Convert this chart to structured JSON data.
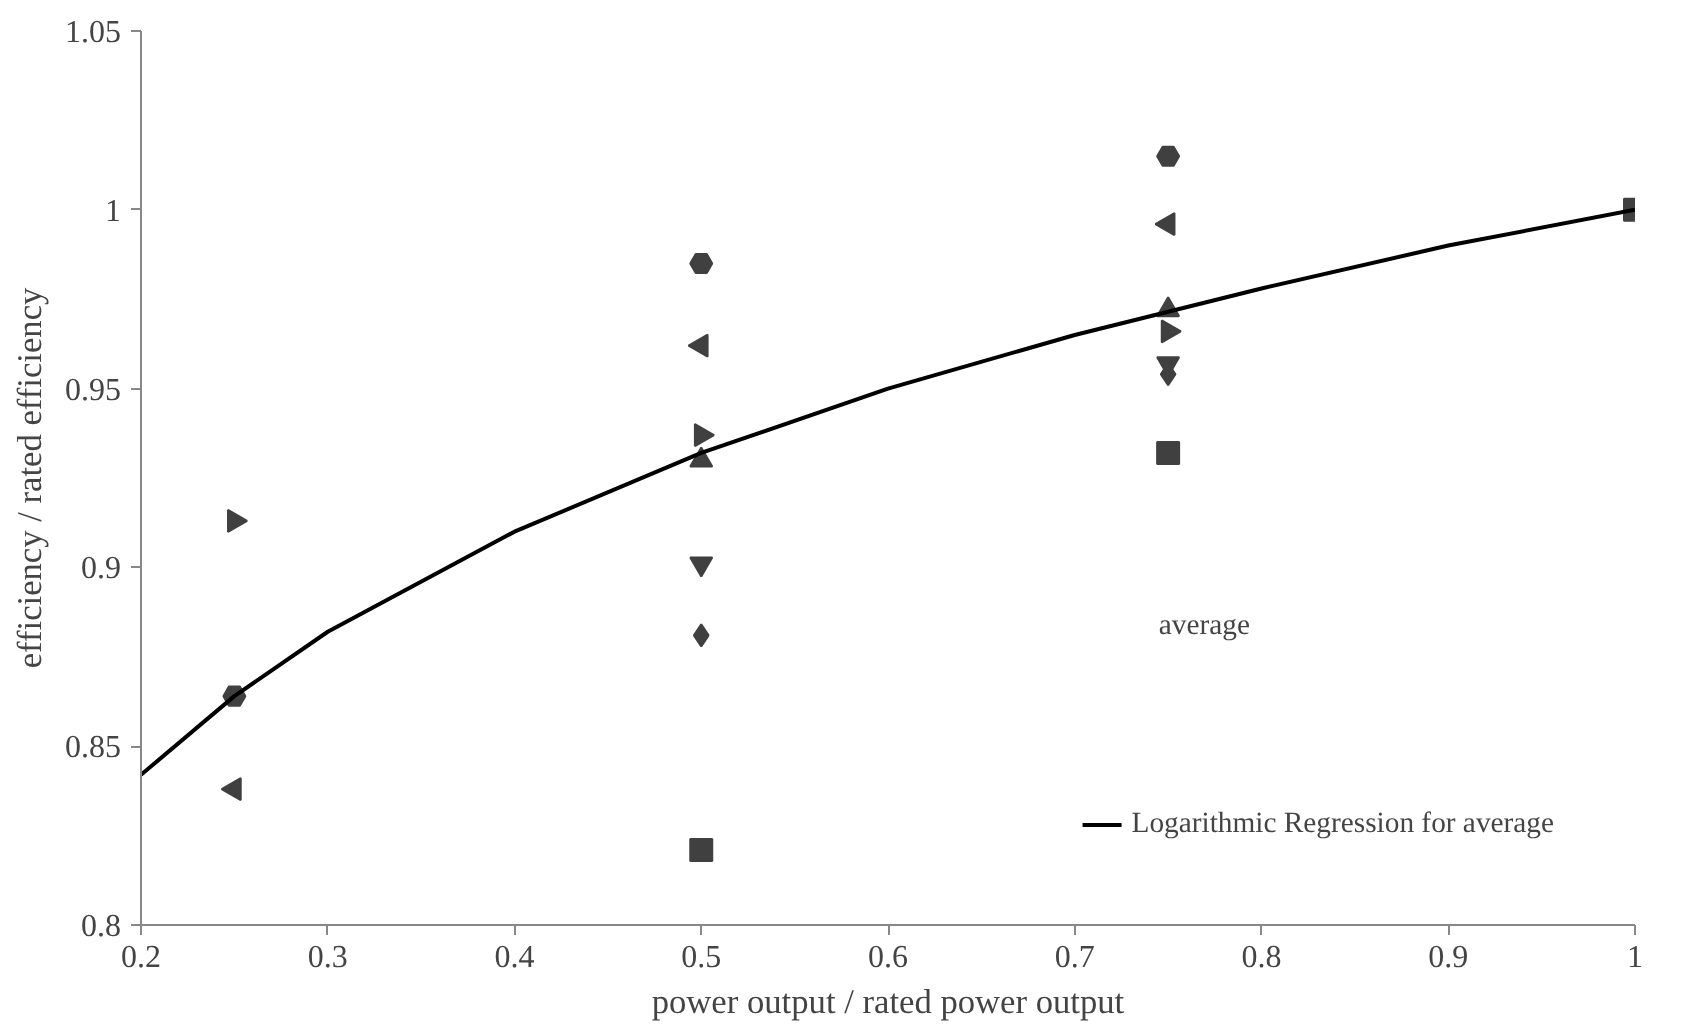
{
  "chart_data": {
    "type": "scatter",
    "xlabel": "power output / rated power output",
    "ylabel": "efficiency / rated efficiency",
    "xlim": [
      0.2,
      1
    ],
    "xticks": [
      0.2,
      0.3,
      0.4,
      0.5,
      0.6,
      0.7,
      0.8,
      0.9,
      1
    ],
    "ylim": [
      0.8,
      1.05
    ],
    "yticks": [
      0.8,
      0.85,
      0.9,
      0.95,
      1,
      1.05
    ],
    "grid": false,
    "legend": "bottom right",
    "annotations": [
      "average"
    ],
    "series": [
      {
        "color": "#404040",
        "marker": "square",
        "x": [
          0.5,
          0.75,
          1
        ],
        "values": [
          0.821,
          0.932,
          1.0
        ]
      },
      {
        "color": "#404040",
        "marker": "diamond",
        "x": [
          0.5,
          0.75
        ],
        "values": [
          0.881,
          0.954
        ]
      },
      {
        "color": "#404040",
        "marker": "triangle_down",
        "x": [
          0.5,
          0.75
        ],
        "values": [
          0.901,
          0.957
        ]
      },
      {
        "color": "#404040",
        "marker": "triangle",
        "x": [
          0.5,
          0.75
        ],
        "values": [
          0.93,
          0.972
        ]
      },
      {
        "color": "#404040",
        "marker": "triangle_right",
        "x": [
          0.25,
          0.5,
          0.75
        ],
        "values": [
          0.913,
          0.937,
          0.966
        ]
      },
      {
        "color": "#404040",
        "marker": "triangle_left",
        "x": [
          0.25,
          0.5,
          0.75
        ],
        "values": [
          0.838,
          0.962,
          0.996
        ]
      },
      {
        "color": "#404040",
        "x": [
          0.25,
          0.5,
          0.75
        ],
        "values": [
          0.864,
          0.985,
          1.015
        ]
      },
      {
        "type": "line",
        "name": "Logarithmic Regression for average",
        "color": "#000000",
        "marker": "none",
        "line_style": "solid",
        "x": [
          0.2,
          0.25,
          0.3,
          0.4,
          0.5,
          0.6,
          0.7,
          0.8,
          0.9,
          1.0
        ],
        "values": [
          0.842,
          0.864,
          0.882,
          0.91,
          0.932,
          0.95,
          0.965,
          0.978,
          0.99,
          1.0
        ]
      }
    ]
  }
}
